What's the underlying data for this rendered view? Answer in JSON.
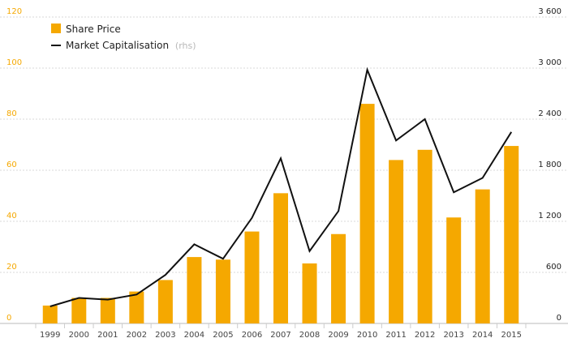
{
  "colors": {
    "bar": "#F5A800",
    "line": "#111111",
    "left_axis_text": "#F5A800",
    "right_axis_text": "#222222",
    "grid": "#D9D9D9"
  },
  "chart_data": {
    "type": "bar",
    "title": "",
    "xlabel": "",
    "ylabel": "",
    "categories": [
      "1999",
      "2000",
      "2001",
      "2002",
      "2003",
      "2004",
      "2005",
      "2006",
      "2007",
      "2008",
      "2009",
      "2010",
      "2011",
      "2012",
      "2013",
      "2014",
      "2015"
    ],
    "series": [
      {
        "name": "Share Price",
        "type": "bar",
        "axis": "left",
        "values": [
          7,
          10,
          10,
          12.5,
          17,
          26,
          25,
          36,
          51,
          23.5,
          35,
          86,
          64,
          68,
          41.5,
          52.5,
          69.5
        ]
      },
      {
        "name": "Market Capitalisation",
        "name_suffix": "(rhs)",
        "type": "line",
        "axis": "right",
        "values": [
          200,
          300,
          280,
          340,
          570,
          930,
          760,
          1240,
          1940,
          850,
          1320,
          2980,
          2150,
          2400,
          1540,
          1710,
          2250
        ]
      }
    ],
    "y_left": {
      "ylim": [
        0,
        120
      ],
      "ticks": [
        "0",
        "20",
        "40",
        "60",
        "80",
        "100",
        "120"
      ]
    },
    "y_right": {
      "ylim": [
        0,
        3600
      ],
      "ticks": [
        "0",
        "600",
        "1 200",
        "1 800",
        "2 400",
        "3 000",
        "3 600"
      ]
    },
    "grid": true,
    "legend_position": "top-left"
  }
}
